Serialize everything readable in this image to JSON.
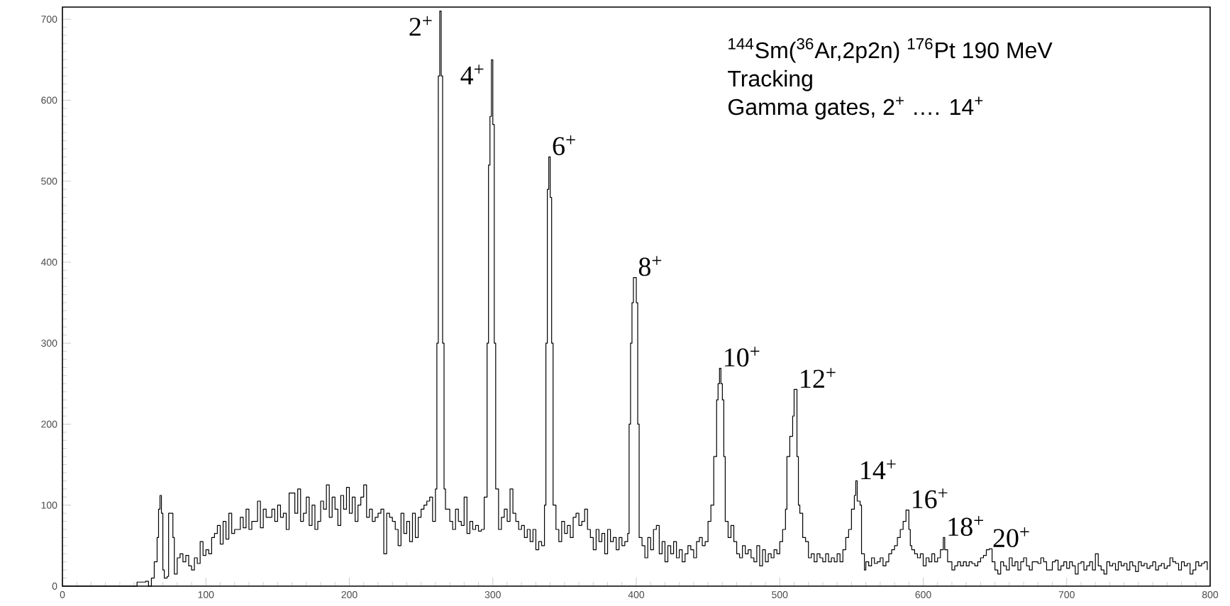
{
  "chart_data": {
    "type": "step",
    "color": "#000000",
    "x": [
      0,
      50,
      52,
      58,
      60,
      62,
      64,
      66,
      67,
      68,
      69,
      70,
      71,
      73,
      74,
      76,
      77,
      78,
      80,
      82,
      84,
      86,
      88,
      90,
      92,
      94,
      96,
      98,
      100,
      102,
      104,
      106,
      108,
      110,
      112,
      114,
      116,
      118,
      120,
      124,
      126,
      128,
      130,
      132,
      136,
      138,
      140,
      142,
      146,
      148,
      150,
      152,
      154,
      156,
      158,
      160,
      162,
      164,
      166,
      168,
      170,
      172,
      174,
      176,
      178,
      180,
      182,
      184,
      186,
      188,
      190,
      192,
      194,
      196,
      198,
      200,
      202,
      204,
      206,
      208,
      210,
      212,
      214,
      216,
      218,
      220,
      222,
      224,
      226,
      228,
      230,
      232,
      234,
      236,
      238,
      240,
      242,
      244,
      246,
      248,
      250,
      252,
      254,
      256,
      258,
      260,
      261,
      262,
      263,
      264,
      265,
      266,
      267,
      270,
      272,
      274,
      276,
      278,
      280,
      282,
      284,
      286,
      288,
      290,
      292,
      294,
      296,
      297,
      298,
      299,
      300,
      301,
      302,
      304,
      306,
      308,
      310,
      312,
      314,
      316,
      318,
      320,
      322,
      324,
      326,
      328,
      330,
      332,
      334,
      336,
      337,
      338,
      339,
      340,
      341,
      342,
      344,
      346,
      348,
      350,
      352,
      354,
      356,
      358,
      360,
      362,
      364,
      366,
      368,
      370,
      372,
      374,
      376,
      378,
      380,
      382,
      384,
      386,
      388,
      390,
      392,
      394,
      395,
      396,
      397,
      398,
      399,
      400,
      401,
      402,
      404,
      406,
      408,
      410,
      412,
      414,
      416,
      418,
      420,
      422,
      424,
      426,
      428,
      430,
      432,
      434,
      436,
      438,
      440,
      442,
      444,
      446,
      448,
      450,
      452,
      454,
      456,
      457,
      458,
      459,
      460,
      461,
      462,
      464,
      466,
      468,
      470,
      472,
      474,
      476,
      478,
      480,
      482,
      484,
      486,
      488,
      490,
      492,
      494,
      496,
      498,
      500,
      502,
      504,
      505,
      507,
      509,
      510,
      511,
      512,
      513,
      514,
      516,
      518,
      520,
      522,
      524,
      526,
      528,
      530,
      532,
      534,
      536,
      538,
      540,
      542,
      544,
      546,
      548,
      550,
      552,
      553,
      554,
      556,
      557,
      559,
      560,
      562,
      564,
      566,
      568,
      570,
      572,
      574,
      576,
      578,
      580,
      582,
      584,
      586,
      588,
      589,
      590,
      591,
      592,
      594,
      596,
      598,
      600,
      602,
      604,
      606,
      608,
      610,
      612,
      614,
      615,
      617,
      620,
      622,
      624,
      626,
      628,
      630,
      632,
      634,
      636,
      638,
      640,
      642,
      644,
      646,
      648,
      650,
      652,
      654,
      656,
      658,
      660,
      662,
      664,
      666,
      668,
      670,
      672,
      674,
      676,
      678,
      680,
      682,
      684,
      686,
      690,
      692,
      694,
      696,
      698,
      700,
      702,
      704,
      706,
      708,
      710,
      712,
      714,
      716,
      718,
      720,
      722,
      724,
      726,
      728,
      730,
      732,
      734,
      736,
      738,
      740,
      742,
      744,
      746,
      748,
      750,
      752,
      754,
      756,
      758,
      760,
      762,
      764,
      766,
      768,
      770,
      772,
      774,
      776,
      778,
      780,
      782,
      784,
      786,
      788,
      790,
      792,
      794,
      796,
      798
    ],
    "values": [
      0,
      0,
      5,
      6,
      0,
      10,
      30,
      60,
      95,
      112,
      90,
      20,
      10,
      12,
      90,
      90,
      60,
      15,
      35,
      40,
      30,
      38,
      25,
      20,
      35,
      28,
      55,
      38,
      45,
      40,
      60,
      65,
      75,
      52,
      80,
      58,
      90,
      65,
      70,
      85,
      72,
      95,
      70,
      80,
      105,
      72,
      95,
      85,
      95,
      80,
      100,
      85,
      90,
      70,
      115,
      115,
      90,
      120,
      80,
      90,
      110,
      75,
      100,
      70,
      80,
      105,
      95,
      125,
      85,
      110,
      95,
      75,
      112,
      95,
      122,
      90,
      110,
      80,
      100,
      110,
      125,
      85,
      95,
      80,
      85,
      90,
      95,
      40,
      90,
      85,
      80,
      70,
      50,
      90,
      65,
      80,
      55,
      90,
      60,
      85,
      95,
      100,
      105,
      110,
      80,
      120,
      300,
      630,
      710,
      630,
      300,
      120,
      95,
      80,
      70,
      95,
      80,
      75,
      110,
      65,
      80,
      70,
      75,
      68,
      70,
      110,
      300,
      520,
      580,
      650,
      570,
      300,
      120,
      70,
      85,
      95,
      80,
      120,
      90,
      80,
      70,
      75,
      60,
      70,
      55,
      70,
      45,
      55,
      50,
      100,
      300,
      490,
      530,
      480,
      300,
      100,
      70,
      55,
      80,
      65,
      75,
      60,
      85,
      90,
      75,
      80,
      95,
      70,
      60,
      45,
      70,
      55,
      65,
      40,
      70,
      55,
      60,
      45,
      60,
      50,
      55,
      65,
      200,
      300,
      350,
      381,
      381,
      350,
      200,
      60,
      50,
      35,
      60,
      45,
      70,
      75,
      40,
      55,
      30,
      50,
      40,
      55,
      35,
      45,
      30,
      40,
      50,
      45,
      35,
      55,
      60,
      50,
      55,
      80,
      100,
      160,
      230,
      250,
      269,
      250,
      230,
      160,
      80,
      60,
      75,
      55,
      40,
      35,
      50,
      40,
      45,
      35,
      30,
      50,
      25,
      45,
      30,
      40,
      35,
      45,
      40,
      55,
      70,
      95,
      160,
      185,
      210,
      243,
      243,
      160,
      100,
      90,
      60,
      55,
      35,
      40,
      30,
      40,
      35,
      30,
      40,
      30,
      35,
      30,
      40,
      30,
      45,
      60,
      70,
      95,
      112,
      130,
      105,
      100,
      40,
      20,
      30,
      25,
      35,
      28,
      30,
      35,
      25,
      30,
      40,
      45,
      50,
      60,
      70,
      80,
      94,
      94,
      70,
      50,
      45,
      40,
      35,
      40,
      25,
      35,
      30,
      40,
      30,
      35,
      45,
      60,
      45,
      30,
      20,
      25,
      30,
      25,
      30,
      25,
      30,
      28,
      25,
      30,
      35,
      38,
      45,
      46,
      30,
      20,
      15,
      30,
      25,
      20,
      35,
      25,
      30,
      20,
      30,
      35,
      25,
      20,
      30,
      30,
      28,
      35,
      30,
      20,
      30,
      32,
      20,
      25,
      30,
      22,
      30,
      25,
      15,
      28,
      30,
      20,
      25,
      30,
      20,
      40,
      25,
      20,
      15,
      30,
      25,
      28,
      20,
      30,
      25,
      28,
      20,
      30,
      25,
      18,
      30,
      25,
      28,
      22,
      25,
      30,
      20,
      25,
      28,
      22,
      25,
      35,
      30,
      28,
      20,
      30,
      25,
      28,
      15,
      20,
      30,
      25,
      28,
      30,
      20
    ],
    "xlim": [
      0,
      800
    ],
    "ylim": [
      0,
      715
    ],
    "xticks": [
      0,
      100,
      200,
      300,
      400,
      500,
      600,
      700,
      800
    ],
    "yticks": [
      0,
      100,
      200,
      300,
      400,
      500,
      600,
      700
    ],
    "annotations": [
      "$^{144}$Sm($^{36}$Ar,2p2n) $^{176}$Pt  190 MeV",
      "Tracking",
      "Gamma gates, 2$^{+}$ …. 14$^{+}$",
      {
        "text": "2$^{+}$",
        "x": 263,
        "y": 710
      },
      {
        "text": "4$^{+}$",
        "x": 299,
        "y": 650
      },
      {
        "text": "6$^{+}$",
        "x": 339,
        "y": 530
      },
      {
        "text": "8$^{+}$",
        "x": 399,
        "y": 381
      },
      {
        "text": "10$^{+}$",
        "x": 458,
        "y": 269
      },
      {
        "text": "12$^{+}$",
        "x": 511,
        "y": 243
      },
      {
        "text": "14$^{+}$",
        "x": 553,
        "y": 130
      },
      {
        "text": "16$^{+}$",
        "x": 589,
        "y": 94
      },
      {
        "text": "18$^{+}$",
        "x": 614,
        "y": 60
      },
      {
        "text": "20$^{+}$",
        "x": 646,
        "y": 46
      }
    ]
  }
}
